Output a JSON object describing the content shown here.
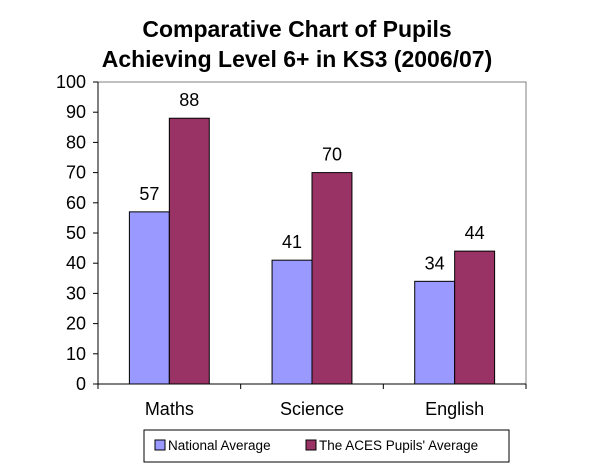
{
  "chart_data": {
    "type": "bar",
    "title_lines": [
      "Comparative Chart of Pupils",
      "Achieving  Level 6+ in KS3 (2006/07)"
    ],
    "categories": [
      "Maths",
      "Science",
      "English"
    ],
    "series": [
      {
        "name": "National Average",
        "values": [
          57,
          41,
          34
        ],
        "color": "#9999ff"
      },
      {
        "name": "The ACES Pupils' Average",
        "values": [
          88,
          70,
          44
        ],
        "color": "#993366"
      }
    ],
    "ylim": [
      0,
      100
    ],
    "yticks": [
      0,
      10,
      20,
      30,
      40,
      50,
      60,
      70,
      80,
      90,
      100
    ],
    "xlabel": "",
    "ylabel": "",
    "grid": false,
    "legend_position": "bottom",
    "plot_area_color": "#ffffff",
    "axis_color": "#808080",
    "text_color": "#000000"
  }
}
